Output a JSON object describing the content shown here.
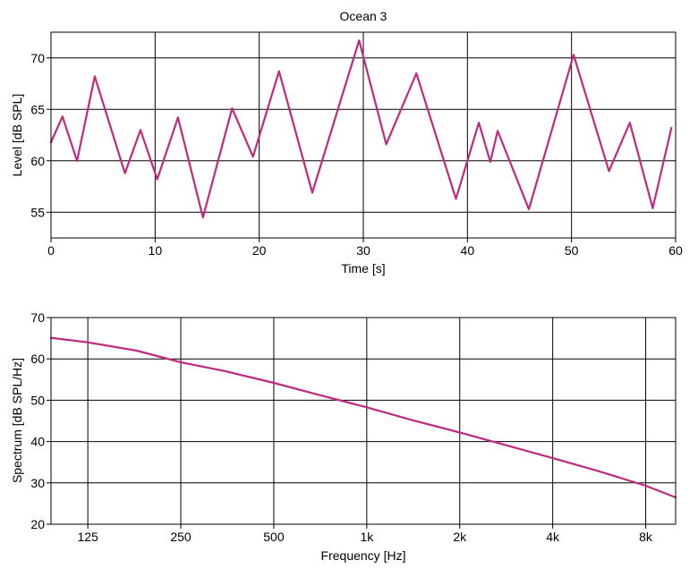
{
  "figure": {
    "title": "Ocean 3"
  },
  "colors": {
    "series": "#c0297f",
    "grid": "#000000",
    "frame": "#000000",
    "background": "#ffffff"
  },
  "chart_data": [
    {
      "type": "line",
      "title": "Ocean 3",
      "xlabel": "Time [s]",
      "ylabel": "Level [dB SPL]",
      "xlim": [
        0,
        60
      ],
      "ylim": [
        52.5,
        72.5
      ],
      "xticks": [
        0,
        10,
        20,
        30,
        40,
        50,
        60
      ],
      "xtick_labels": [
        "0",
        "10",
        "20",
        "30",
        "40",
        "50",
        "60"
      ],
      "yticks": [
        55,
        60,
        65,
        70
      ],
      "ytick_labels": [
        "55",
        "60",
        "65",
        "70"
      ],
      "grid": true,
      "legend": "none",
      "series": [
        {
          "x": [
            0,
            1.1,
            2.5,
            4.2,
            7.1,
            8.6,
            10.2,
            12.2,
            14.6,
            17.4,
            19.4,
            21.9,
            25.1,
            29.6,
            32.2,
            35.1,
            38.9,
            41.1,
            42.2,
            42.9,
            45.9,
            50.2,
            53.6,
            55.6,
            57.8,
            59.6
          ],
          "y": [
            61.8,
            64.3,
            60.0,
            68.2,
            58.8,
            63.0,
            58.2,
            64.2,
            54.5,
            65.1,
            60.4,
            68.7,
            56.9,
            71.7,
            61.6,
            68.5,
            56.3,
            63.7,
            59.9,
            62.9,
            55.3,
            70.3,
            59.0,
            63.7,
            55.4,
            63.2
          ]
        }
      ]
    },
    {
      "type": "line",
      "title": "",
      "xlabel": "Frequency [Hz]",
      "ylabel": "Spectrum [dB SPL/Hz]",
      "xscale": "log",
      "xlim": [
        95,
        10000
      ],
      "ylim": [
        20,
        70
      ],
      "xticks": [
        125,
        250,
        500,
        1000,
        2000,
        4000,
        8000
      ],
      "xtick_labels": [
        "125",
        "250",
        "500",
        "1k",
        "2k",
        "4k",
        "8k"
      ],
      "yticks": [
        20,
        30,
        40,
        50,
        60,
        70
      ],
      "ytick_labels": [
        "20",
        "30",
        "40",
        "50",
        "60",
        "70"
      ],
      "grid": true,
      "legend": "none",
      "series": [
        {
          "x": [
            95,
            125,
            180,
            250,
            350,
            500,
            700,
            1000,
            1400,
            2000,
            2800,
            4000,
            5600,
            8000,
            10000
          ],
          "y": [
            65.1,
            64.0,
            62.0,
            59.2,
            57.0,
            54.2,
            51.3,
            48.3,
            45.2,
            42.2,
            39.2,
            36.0,
            32.9,
            29.3,
            26.5
          ]
        }
      ]
    }
  ]
}
